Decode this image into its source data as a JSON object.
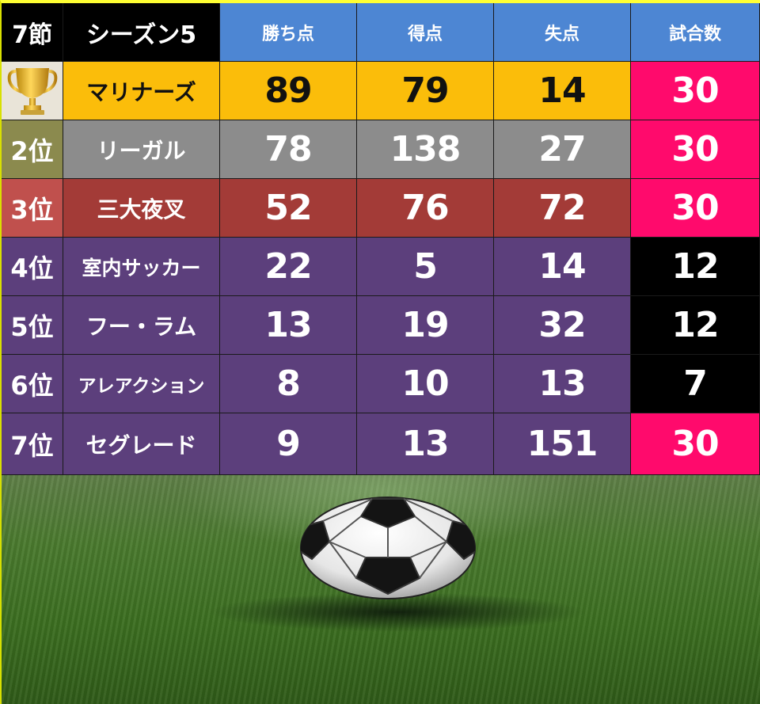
{
  "header": {
    "round": "7節",
    "season": "シーズン5",
    "columns": [
      "勝ち点",
      "得点",
      "失点",
      "試合数"
    ]
  },
  "rows": [
    {
      "rank": "",
      "team": "マリナーズ",
      "points": "89",
      "goals_for": "79",
      "goals_against": "14",
      "matches": "30"
    },
    {
      "rank": "2位",
      "team": "リーガル",
      "points": "78",
      "goals_for": "138",
      "goals_against": "27",
      "matches": "30"
    },
    {
      "rank": "3位",
      "team": "三大夜叉",
      "points": "52",
      "goals_for": "76",
      "goals_against": "72",
      "matches": "30"
    },
    {
      "rank": "4位",
      "team": "室内サッカー",
      "points": "22",
      "goals_for": "5",
      "goals_against": "14",
      "matches": "12"
    },
    {
      "rank": "5位",
      "team": "フー・ラム",
      "points": "13",
      "goals_for": "19",
      "goals_against": "32",
      "matches": "12"
    },
    {
      "rank": "6位",
      "team": "アレアクション",
      "points": "8",
      "goals_for": "10",
      "goals_against": "13",
      "matches": "7"
    },
    {
      "rank": "7位",
      "team": "セグレード",
      "points": "9",
      "goals_for": "13",
      "goals_against": "151",
      "matches": "30"
    }
  ],
  "icons": {
    "first_place": "trophy-icon",
    "background": "soccer-ball-icon"
  },
  "colors": {
    "header_blue": "#4d86d3",
    "first": "#fbbd0a",
    "second": "#8c8c8c",
    "third": "#a33b37",
    "rest": "#5c3f7c",
    "rank2": "#8b8a4e",
    "rank3": "#c0504d",
    "matches_pink": "#ff0a6c",
    "matches_black": "#000000"
  }
}
